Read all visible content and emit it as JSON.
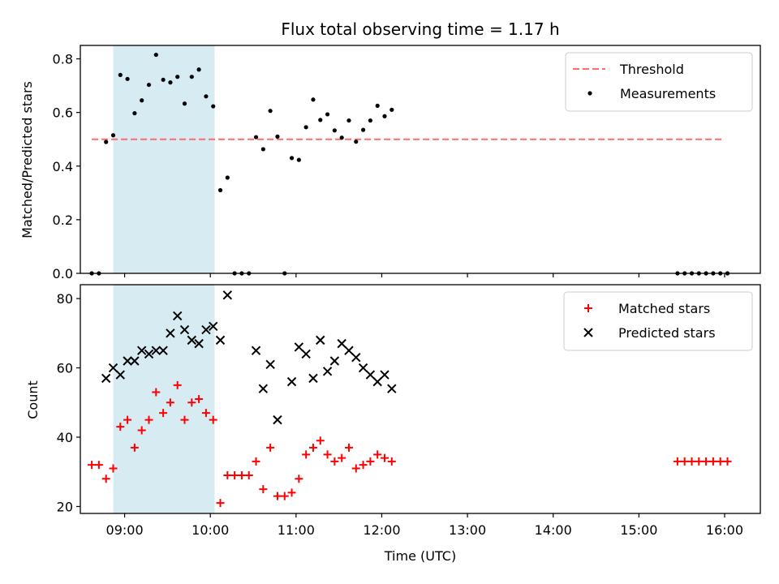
{
  "chart_data": [
    {
      "type": "scatter",
      "title": "Flux total observing time = 1.17 h",
      "xlabel": "",
      "ylabel": "Matched/Predicted stars",
      "xlim": [
        "08:29",
        "16:25"
      ],
      "ylim": [
        0,
        0.85
      ],
      "grid": false,
      "legend_position": "top-right",
      "y_ticks": [
        0.0,
        0.2,
        0.4,
        0.6,
        0.8
      ],
      "y_tick_labels": [
        "0.0",
        "0.2",
        "0.4",
        "0.6",
        "0.8"
      ],
      "x_ticks": [
        "09:00",
        "10:00",
        "11:00",
        "12:00",
        "13:00",
        "14:00",
        "15:00",
        "16:00"
      ],
      "x_tick_labels_visible": false,
      "shaded_span": {
        "x_start": "08:52",
        "x_end": "10:03",
        "color": "#add8e6"
      },
      "threshold": {
        "name": "Threshold",
        "y": 0.5,
        "x_start": "08:37",
        "x_end": "16:00",
        "color": "#ff6b6b",
        "style": "dashed"
      },
      "series": [
        {
          "name": "Measurements",
          "marker": "dot",
          "color": "#000000",
          "points": [
            [
              "08:37",
              0.0
            ],
            [
              "08:42",
              0.0
            ],
            [
              "08:47",
              0.49
            ],
            [
              "08:52",
              0.515
            ],
            [
              "08:57",
              0.74
            ],
            [
              "09:02",
              0.725
            ],
            [
              "09:07",
              0.597
            ],
            [
              "09:12",
              0.645
            ],
            [
              "09:17",
              0.703
            ],
            [
              "09:22",
              0.815
            ],
            [
              "09:27",
              0.722
            ],
            [
              "09:32",
              0.712
            ],
            [
              "09:37",
              0.733
            ],
            [
              "09:42",
              0.633
            ],
            [
              "09:47",
              0.733
            ],
            [
              "09:52",
              0.76
            ],
            [
              "09:57",
              0.66
            ],
            [
              "10:02",
              0.623
            ],
            [
              "10:07",
              0.31
            ],
            [
              "10:12",
              0.357
            ],
            [
              "10:17",
              0.0
            ],
            [
              "10:22",
              0.0
            ],
            [
              "10:27",
              0.0
            ],
            [
              "10:32",
              0.508
            ],
            [
              "10:37",
              0.463
            ],
            [
              "10:42",
              0.606
            ],
            [
              "10:47",
              0.51
            ],
            [
              "10:52",
              0.0
            ],
            [
              "10:57",
              0.43
            ],
            [
              "11:02",
              0.423
            ],
            [
              "11:07",
              0.545
            ],
            [
              "11:12",
              0.648
            ],
            [
              "11:17",
              0.572
            ],
            [
              "11:22",
              0.593
            ],
            [
              "11:27",
              0.533
            ],
            [
              "11:32",
              0.506
            ],
            [
              "11:37",
              0.57
            ],
            [
              "11:42",
              0.491
            ],
            [
              "11:47",
              0.535
            ],
            [
              "11:52",
              0.57
            ],
            [
              "11:57",
              0.625
            ],
            [
              "12:02",
              0.586
            ],
            [
              "12:07",
              0.61
            ],
            [
              "15:27",
              0.0
            ],
            [
              "15:32",
              0.0
            ],
            [
              "15:37",
              0.0
            ],
            [
              "15:42",
              0.0
            ],
            [
              "15:47",
              0.0
            ],
            [
              "15:52",
              0.0
            ],
            [
              "15:57",
              0.0
            ],
            [
              "16:02",
              0.0
            ]
          ]
        }
      ]
    },
    {
      "type": "scatter",
      "title": "",
      "xlabel": "Time (UTC)",
      "ylabel": "Count",
      "xlim": [
        "08:29",
        "16:25"
      ],
      "ylim": [
        18,
        84
      ],
      "grid": false,
      "legend_position": "top-right",
      "y_ticks": [
        20,
        40,
        60,
        80
      ],
      "y_tick_labels": [
        "20",
        "40",
        "60",
        "80"
      ],
      "x_ticks": [
        "09:00",
        "10:00",
        "11:00",
        "12:00",
        "13:00",
        "14:00",
        "15:00",
        "16:00"
      ],
      "x_tick_labels": [
        "09:00",
        "10:00",
        "11:00",
        "12:00",
        "13:00",
        "14:00",
        "15:00",
        "16:00"
      ],
      "shaded_span": {
        "x_start": "08:52",
        "x_end": "10:03",
        "color": "#add8e6"
      },
      "series": [
        {
          "name": "Matched stars",
          "marker": "plus",
          "color": "#ff0000",
          "points": [
            [
              "08:37",
              32
            ],
            [
              "08:42",
              32
            ],
            [
              "08:47",
              28
            ],
            [
              "08:52",
              31
            ],
            [
              "08:57",
              43
            ],
            [
              "09:02",
              45
            ],
            [
              "09:07",
              37
            ],
            [
              "09:12",
              42
            ],
            [
              "09:17",
              45
            ],
            [
              "09:22",
              53
            ],
            [
              "09:27",
              47
            ],
            [
              "09:32",
              50
            ],
            [
              "09:37",
              55
            ],
            [
              "09:42",
              45
            ],
            [
              "09:47",
              50
            ],
            [
              "09:52",
              51
            ],
            [
              "09:57",
              47
            ],
            [
              "10:02",
              45
            ],
            [
              "10:07",
              21
            ],
            [
              "10:12",
              29
            ],
            [
              "10:17",
              29
            ],
            [
              "10:22",
              29
            ],
            [
              "10:27",
              29
            ],
            [
              "10:32",
              33
            ],
            [
              "10:37",
              25
            ],
            [
              "10:42",
              37
            ],
            [
              "10:47",
              23
            ],
            [
              "10:52",
              23
            ],
            [
              "10:57",
              24
            ],
            [
              "11:02",
              28
            ],
            [
              "11:07",
              35
            ],
            [
              "11:12",
              37
            ],
            [
              "11:17",
              39
            ],
            [
              "11:22",
              35
            ],
            [
              "11:27",
              33
            ],
            [
              "11:32",
              34
            ],
            [
              "11:37",
              37
            ],
            [
              "11:42",
              31
            ],
            [
              "11:47",
              32
            ],
            [
              "11:52",
              33
            ],
            [
              "11:57",
              35
            ],
            [
              "12:02",
              34
            ],
            [
              "12:07",
              33
            ],
            [
              "15:27",
              33
            ],
            [
              "15:32",
              33
            ],
            [
              "15:37",
              33
            ],
            [
              "15:42",
              33
            ],
            [
              "15:47",
              33
            ],
            [
              "15:52",
              33
            ],
            [
              "15:57",
              33
            ],
            [
              "16:02",
              33
            ]
          ]
        },
        {
          "name": "Predicted stars",
          "marker": "x",
          "color": "#000000",
          "points": [
            [
              "08:47",
              57
            ],
            [
              "08:52",
              60
            ],
            [
              "08:57",
              58
            ],
            [
              "09:02",
              62
            ],
            [
              "09:07",
              62
            ],
            [
              "09:12",
              65
            ],
            [
              "09:17",
              64
            ],
            [
              "09:22",
              65
            ],
            [
              "09:27",
              65
            ],
            [
              "09:32",
              70
            ],
            [
              "09:37",
              75
            ],
            [
              "09:42",
              71
            ],
            [
              "09:47",
              68
            ],
            [
              "09:52",
              67
            ],
            [
              "09:57",
              71
            ],
            [
              "10:02",
              72
            ],
            [
              "10:07",
              68
            ],
            [
              "10:12",
              81
            ],
            [
              "10:32",
              65
            ],
            [
              "10:37",
              54
            ],
            [
              "10:42",
              61
            ],
            [
              "10:47",
              45
            ],
            [
              "10:57",
              56
            ],
            [
              "11:02",
              66
            ],
            [
              "11:07",
              64
            ],
            [
              "11:12",
              57
            ],
            [
              "11:17",
              68
            ],
            [
              "11:22",
              59
            ],
            [
              "11:27",
              62
            ],
            [
              "11:32",
              67
            ],
            [
              "11:37",
              65
            ],
            [
              "11:42",
              63
            ],
            [
              "11:47",
              60
            ],
            [
              "11:52",
              58
            ],
            [
              "11:57",
              56
            ],
            [
              "12:02",
              58
            ],
            [
              "12:07",
              54
            ]
          ]
        }
      ]
    }
  ]
}
